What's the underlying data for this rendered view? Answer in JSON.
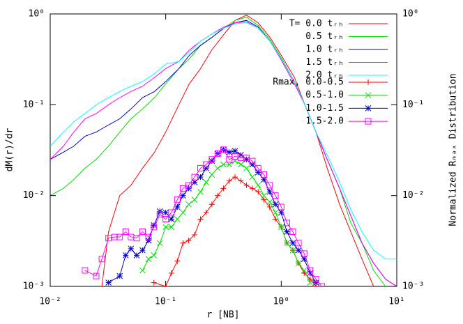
{
  "chart_data": {
    "type": "line",
    "log_x": true,
    "log_y": true,
    "x_label": "r [NB]",
    "y_label": "dM(r)/dr",
    "y2_label": "Normalized Rₘₐₓ Distribution",
    "xlim": [
      0.01,
      10
    ],
    "ylim": [
      0.001,
      1
    ],
    "y2lim": [
      0.001,
      1
    ],
    "xticks": [
      {
        "value": 0.01,
        "label": "10⁻²"
      },
      {
        "value": 0.1,
        "label": "10⁻¹"
      },
      {
        "value": 1,
        "label": "10⁰"
      },
      {
        "value": 10,
        "label": "10¹"
      }
    ],
    "yticks": [
      {
        "value": 0.001,
        "label": "10⁻³"
      },
      {
        "value": 0.01,
        "label": "10⁻²"
      },
      {
        "value": 0.1,
        "label": "10⁻¹"
      },
      {
        "value": 1,
        "label": "10⁰"
      }
    ],
    "y2ticks": [
      {
        "value": 0.001,
        "label": "10⁻³"
      },
      {
        "value": 0.01,
        "label": "10⁻²"
      },
      {
        "value": 0.1,
        "label": "10⁻¹"
      },
      {
        "value": 1,
        "label": "10⁰"
      }
    ],
    "legend": "top-right",
    "series": [
      {
        "name": "T= 0.0 tᵣₕ",
        "color": "#ff0000",
        "x": [
          0.028,
          0.032,
          0.04,
          0.05,
          0.063,
          0.08,
          0.1,
          0.13,
          0.16,
          0.2,
          0.25,
          0.32,
          0.4,
          0.5,
          0.63,
          0.8,
          1,
          1.3,
          1.6,
          2,
          2.5,
          3.2,
          4,
          5,
          6.3
        ],
        "values": [
          0.001,
          0.004,
          0.01,
          0.013,
          0.02,
          0.03,
          0.05,
          0.1,
          0.17,
          0.25,
          0.4,
          0.6,
          0.85,
          0.97,
          0.8,
          0.55,
          0.35,
          0.2,
          0.1,
          0.05,
          0.02,
          0.008,
          0.004,
          0.002,
          0.001
        ]
      },
      {
        "name": "0.5 tᵣₕ",
        "color": "#00e000",
        "x": [
          0.01,
          0.013,
          0.016,
          0.02,
          0.025,
          0.032,
          0.04,
          0.05,
          0.063,
          0.08,
          0.1,
          0.13,
          0.16,
          0.2,
          0.25,
          0.32,
          0.4,
          0.5,
          0.63,
          0.8,
          1,
          1.3,
          1.6,
          2,
          2.5,
          3.2,
          4,
          5,
          6.3,
          8
        ],
        "values": [
          0.01,
          0.012,
          0.015,
          0.02,
          0.025,
          0.035,
          0.05,
          0.07,
          0.09,
          0.12,
          0.17,
          0.25,
          0.32,
          0.45,
          0.55,
          0.7,
          0.85,
          0.92,
          0.75,
          0.52,
          0.33,
          0.18,
          0.1,
          0.05,
          0.025,
          0.012,
          0.005,
          0.003,
          0.0015,
          0.001
        ]
      },
      {
        "name": "1.0 tᵣₕ",
        "color": "#0000cc",
        "x": [
          0.01,
          0.013,
          0.016,
          0.02,
          0.025,
          0.032,
          0.04,
          0.05,
          0.063,
          0.08,
          0.1,
          0.13,
          0.16,
          0.2,
          0.25,
          0.32,
          0.4,
          0.5,
          0.63,
          0.8,
          1,
          1.3,
          1.6,
          2,
          2.5,
          3.2,
          4,
          5,
          6.3,
          8,
          10
        ],
        "values": [
          0.025,
          0.03,
          0.035,
          0.045,
          0.05,
          0.06,
          0.07,
          0.09,
          0.12,
          0.14,
          0.18,
          0.25,
          0.35,
          0.45,
          0.55,
          0.7,
          0.8,
          0.85,
          0.72,
          0.5,
          0.32,
          0.18,
          0.1,
          0.05,
          0.025,
          0.012,
          0.006,
          0.003,
          0.0018,
          0.0012,
          0.001
        ]
      },
      {
        "name": "1.5 tᵣₕ",
        "color": "#ff00ff",
        "x": [
          0.01,
          0.013,
          0.016,
          0.02,
          0.025,
          0.032,
          0.04,
          0.05,
          0.063,
          0.08,
          0.1,
          0.13,
          0.16,
          0.2,
          0.25,
          0.32,
          0.4,
          0.5,
          0.63,
          0.8,
          1,
          1.3,
          1.6,
          2,
          2.5,
          3.2,
          4,
          5,
          6.3,
          8,
          10
        ],
        "values": [
          0.025,
          0.035,
          0.05,
          0.07,
          0.08,
          0.1,
          0.12,
          0.14,
          0.16,
          0.2,
          0.25,
          0.3,
          0.4,
          0.5,
          0.6,
          0.72,
          0.8,
          0.82,
          0.7,
          0.5,
          0.31,
          0.17,
          0.1,
          0.05,
          0.025,
          0.012,
          0.006,
          0.003,
          0.0018,
          0.0012,
          0.001
        ]
      },
      {
        "name": "2.0 tᵣₕ",
        "color": "#00ffff",
        "x": [
          0.01,
          0.013,
          0.016,
          0.02,
          0.025,
          0.032,
          0.04,
          0.05,
          0.063,
          0.08,
          0.1,
          0.13,
          0.16,
          0.2,
          0.25,
          0.32,
          0.4,
          0.5,
          0.63,
          0.8,
          1,
          1.3,
          1.6,
          2,
          2.5,
          3.2,
          4,
          5,
          6.3,
          8,
          10
        ],
        "values": [
          0.035,
          0.05,
          0.065,
          0.08,
          0.1,
          0.12,
          0.14,
          0.16,
          0.18,
          0.22,
          0.28,
          0.3,
          0.38,
          0.5,
          0.6,
          0.7,
          0.78,
          0.8,
          0.7,
          0.5,
          0.32,
          0.18,
          0.1,
          0.05,
          0.028,
          0.014,
          0.007,
          0.004,
          0.0025,
          0.002,
          0.002
        ]
      },
      {
        "name": "Rmax, 0.0-0.5",
        "color": "#ff0000",
        "axis": "y2",
        "marker": "plus",
        "x": [
          0.079,
          0.1,
          0.112,
          0.126,
          0.141,
          0.158,
          0.178,
          0.2,
          0.224,
          0.251,
          0.282,
          0.316,
          0.355,
          0.398,
          0.447,
          0.5,
          0.562,
          0.631,
          0.708,
          0.794,
          0.891,
          1,
          1.12,
          1.26,
          1.41,
          1.58,
          1.78,
          2
        ],
        "values": [
          0.0011,
          0.001,
          0.0014,
          0.0019,
          0.003,
          0.0032,
          0.0037,
          0.0055,
          0.0065,
          0.008,
          0.01,
          0.012,
          0.0145,
          0.016,
          0.0145,
          0.013,
          0.012,
          0.011,
          0.009,
          0.0075,
          0.0055,
          0.0045,
          0.003,
          0.0025,
          0.0018,
          0.0014,
          0.0012,
          0.001
        ]
      },
      {
        "name": "0.5-1.0",
        "color": "#00e000",
        "axis": "y2",
        "marker": "cross",
        "x": [
          0.063,
          0.071,
          0.079,
          0.089,
          0.1,
          0.112,
          0.126,
          0.141,
          0.158,
          0.178,
          0.2,
          0.224,
          0.251,
          0.282,
          0.316,
          0.355,
          0.398,
          0.447,
          0.5,
          0.562,
          0.631,
          0.708,
          0.794,
          0.891,
          1,
          1.12,
          1.26,
          1.41,
          1.58,
          1.78
        ],
        "values": [
          0.0015,
          0.002,
          0.0022,
          0.003,
          0.0045,
          0.0045,
          0.0055,
          0.0065,
          0.008,
          0.009,
          0.011,
          0.014,
          0.017,
          0.02,
          0.022,
          0.022,
          0.024,
          0.022,
          0.02,
          0.016,
          0.013,
          0.01,
          0.0085,
          0.0065,
          0.0045,
          0.003,
          0.0025,
          0.0018,
          0.0015,
          0.0011
        ]
      },
      {
        "name": "1.0-1.5",
        "color": "#0000cc",
        "axis": "y2",
        "marker": "star",
        "x": [
          0.032,
          0.04,
          0.045,
          0.05,
          0.056,
          0.063,
          0.071,
          0.079,
          0.089,
          0.1,
          0.112,
          0.126,
          0.141,
          0.158,
          0.178,
          0.2,
          0.224,
          0.251,
          0.282,
          0.316,
          0.355,
          0.398,
          0.447,
          0.5,
          0.562,
          0.631,
          0.708,
          0.794,
          0.891,
          1,
          1.12,
          1.26,
          1.41,
          1.58,
          1.78,
          2
        ],
        "values": [
          0.0011,
          0.0013,
          0.0022,
          0.0026,
          0.0022,
          0.0025,
          0.0032,
          0.0047,
          0.0067,
          0.0065,
          0.0055,
          0.0075,
          0.01,
          0.012,
          0.014,
          0.016,
          0.02,
          0.024,
          0.029,
          0.032,
          0.03,
          0.031,
          0.028,
          0.025,
          0.022,
          0.018,
          0.015,
          0.011,
          0.008,
          0.0065,
          0.004,
          0.003,
          0.0025,
          0.002,
          0.0014,
          0.0011
        ]
      },
      {
        "name": "1.5-2.0",
        "color": "#ff00ff",
        "axis": "y2",
        "marker": "square",
        "x": [
          0.02,
          0.025,
          0.028,
          0.032,
          0.036,
          0.04,
          0.045,
          0.05,
          0.056,
          0.063,
          0.071,
          0.079,
          0.089,
          0.1,
          0.112,
          0.126,
          0.141,
          0.158,
          0.178,
          0.2,
          0.224,
          0.251,
          0.282,
          0.316,
          0.355,
          0.398,
          0.447,
          0.5,
          0.562,
          0.631,
          0.708,
          0.794,
          0.891,
          1,
          1.12,
          1.26,
          1.41,
          1.58,
          1.78,
          2,
          2.24
        ],
        "values": [
          0.0015,
          0.0013,
          0.002,
          0.0034,
          0.0035,
          0.0035,
          0.004,
          0.0035,
          0.0034,
          0.004,
          0.0035,
          0.0045,
          0.0062,
          0.0055,
          0.0065,
          0.009,
          0.012,
          0.013,
          0.016,
          0.02,
          0.022,
          0.025,
          0.029,
          0.032,
          0.025,
          0.027,
          0.026,
          0.026,
          0.024,
          0.02,
          0.017,
          0.013,
          0.01,
          0.0075,
          0.005,
          0.004,
          0.003,
          0.0023,
          0.0015,
          0.0012,
          0.001
        ]
      }
    ]
  }
}
